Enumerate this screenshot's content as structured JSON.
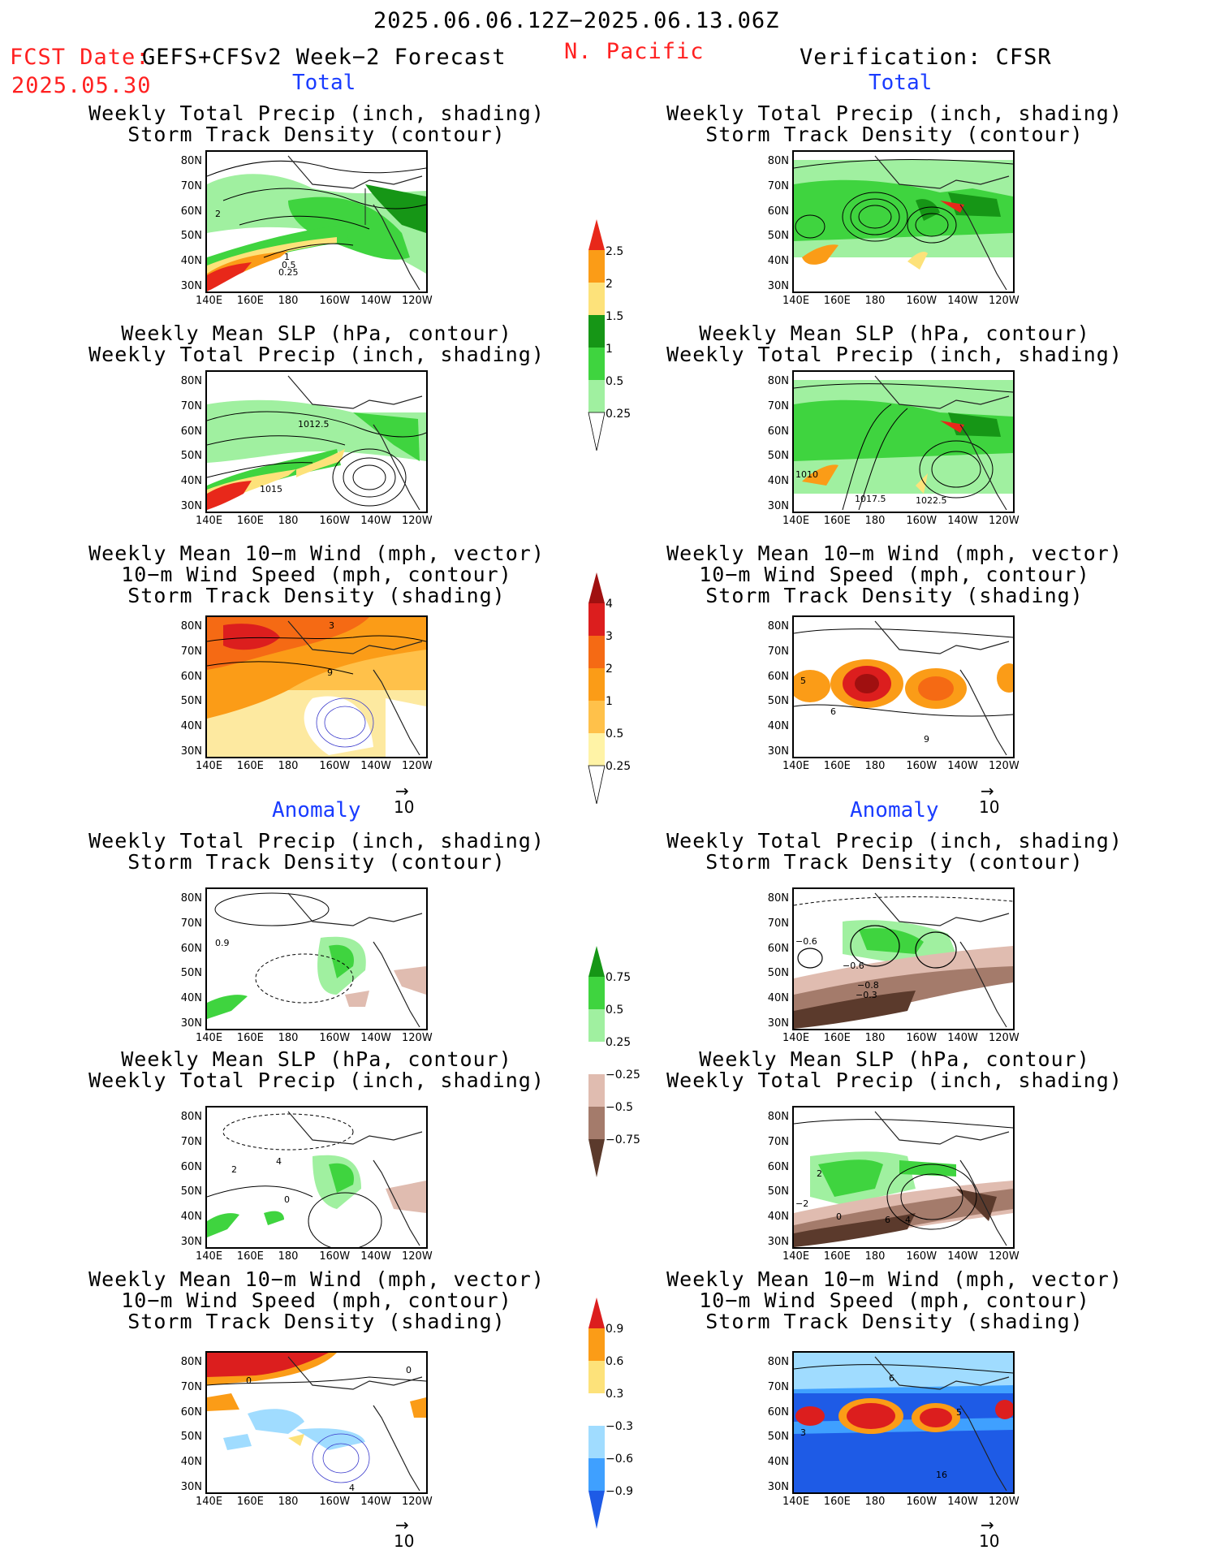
{
  "header": {
    "period": "2025.06.06.12Z−2025.06.13.06Z",
    "fcst_label": "FCST Date:",
    "fcst_model": "GEFS+CFSv2 Week−2 Forecast",
    "fcst_date": "2025.05.30",
    "region": "N. Pacific",
    "verification": "Verification: CFSR"
  },
  "sections": {
    "total": "Total",
    "anomaly": "Anomaly"
  },
  "panel_titles": {
    "precip_storm": [
      "Weekly Total Precip (inch, shading)",
      "Storm Track Density (contour)"
    ],
    "slp_precip": [
      "Weekly Mean SLP (hPa, contour)",
      "Weekly Total Precip (inch, shading)"
    ],
    "wind_storm": [
      "Weekly Mean 10−m Wind (mph, vector)",
      "10−m Wind Speed (mph, contour)",
      "Storm Track Density (shading)"
    ]
  },
  "axes": {
    "lat_ticks": [
      "80N",
      "70N",
      "60N",
      "50N",
      "40N",
      "30N"
    ],
    "lon_ticks": [
      "140E",
      "160E",
      "180",
      "160W",
      "140W",
      "120W"
    ]
  },
  "reference_vector": "10",
  "contour_labels": {
    "p1_fcst_storm": [
      "2",
      "1",
      "0.5",
      "0.25"
    ],
    "p2_fcst_slp": [
      "1012.5",
      "1015"
    ],
    "p2_obs_slp": [
      "1010",
      "1017.5",
      "1022.5"
    ],
    "p3_fcst_wind": [
      "3",
      "9"
    ],
    "p3_obs_wind": [
      "5",
      "6",
      "9"
    ],
    "p4_fcst": [
      "0.9"
    ],
    "p4_obs": [
      "−0.6",
      "−0.6",
      "−0.8",
      "−0.3"
    ],
    "p5_fcst": [
      "2",
      "4",
      "0"
    ],
    "p5_obs": [
      "2",
      "0",
      "6",
      "4",
      "−2"
    ],
    "p6_fcst": [
      "0",
      "4",
      "0"
    ],
    "p6_obs": [
      "6",
      "3",
      "5",
      "16"
    ]
  },
  "colorbars": {
    "precip_total": [
      "2.5",
      "2",
      "1.5",
      "1",
      "0.5",
      "0.25"
    ],
    "storm_total": [
      "4",
      "3",
      "2",
      "1",
      "0.5",
      "0.25"
    ],
    "precip_anom": [
      "0.75",
      "0.5",
      "0.25",
      "−0.25",
      "−0.5",
      "−0.75"
    ],
    "storm_anom": [
      "0.9",
      "0.6",
      "0.3",
      "−0.3",
      "−0.6",
      "−0.9"
    ]
  },
  "colors": {
    "precip_light": "#a0f0a0",
    "precip_mid": "#3fd43f",
    "precip_dark": "#169616",
    "precip_yellow": "#fde27a",
    "precip_orange": "#fb9c17",
    "precip_red": "#e8281a",
    "dry_light": "#e0bcb0",
    "dry_mid": "#a47b6b",
    "dry_dark": "#5b3a2c",
    "storm_yellow": "#fff3a6",
    "storm_lorange": "#ffc14a",
    "storm_orange": "#fb9c17",
    "storm_dorange": "#f56a14",
    "storm_red": "#dc1e1e",
    "storm_dred": "#a01010",
    "anom_blue_dark": "#1e5be6",
    "anom_blue_mid": "#3fa0ff",
    "anom_blue_light": "#a0dcff"
  }
}
